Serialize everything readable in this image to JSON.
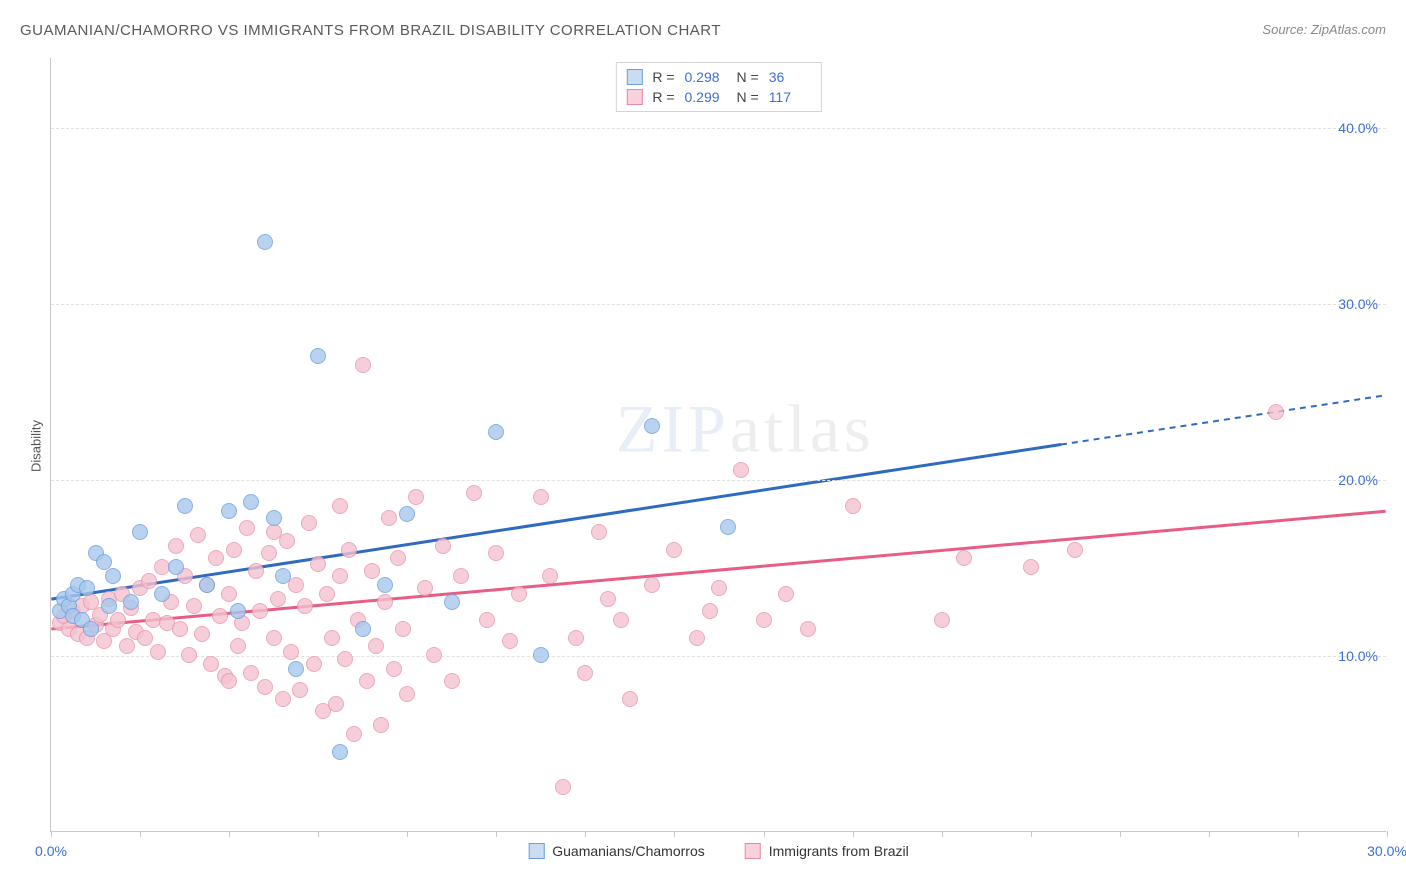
{
  "title": "GUAMANIAN/CHAMORRO VS IMMIGRANTS FROM BRAZIL DISABILITY CORRELATION CHART",
  "source_label": "Source:",
  "source_value": "ZipAtlas.com",
  "ylabel": "Disability",
  "watermark": {
    "part1": "ZIP",
    "part2": "atlas"
  },
  "chart": {
    "type": "scatter",
    "background_color": "#ffffff",
    "grid_color": "#e0e0e0",
    "axis_color": "#c8c8c8",
    "tick_label_color": "#3a6fd8",
    "tick_label_fontsize": 14,
    "xlim": [
      0,
      30
    ],
    "ylim": [
      0,
      44
    ],
    "x_ticks": [
      0,
      2,
      4,
      6,
      8,
      10,
      12,
      14,
      16,
      18,
      20,
      22,
      24,
      26,
      28,
      30
    ],
    "x_tick_labels": {
      "0": "0.0%",
      "30": "30.0%"
    },
    "y_gridlines": [
      10,
      20,
      30,
      40
    ],
    "y_tick_labels": {
      "10": "10.0%",
      "20": "20.0%",
      "30": "30.0%",
      "40": "40.0%"
    },
    "marker_radius": 8,
    "marker_stroke_width": 1.5,
    "marker_fill_opacity": 0.35,
    "series": [
      {
        "id": "guamanians",
        "label": "Guamanians/Chamorros",
        "color_stroke": "#6b9fde",
        "color_fill": "#a8c8ec",
        "swatch_border": "#6b9fde",
        "swatch_fill": "#cadcf2",
        "R": "0.298",
        "N": "36",
        "trend": {
          "color": "#2e6bc0",
          "width": 3,
          "x1": 0,
          "y1": 13.2,
          "x2": 22.7,
          "y2": 22.0,
          "dash_x2": 30,
          "dash_y2": 24.8
        },
        "points": [
          [
            0.2,
            12.5
          ],
          [
            0.3,
            13.2
          ],
          [
            0.4,
            12.8
          ],
          [
            0.5,
            13.5
          ],
          [
            0.5,
            12.2
          ],
          [
            0.6,
            14.0
          ],
          [
            0.7,
            12.0
          ],
          [
            0.8,
            13.8
          ],
          [
            0.9,
            11.5
          ],
          [
            1.0,
            15.8
          ],
          [
            1.2,
            15.3
          ],
          [
            1.3,
            12.8
          ],
          [
            1.4,
            14.5
          ],
          [
            1.8,
            13.0
          ],
          [
            2.0,
            17.0
          ],
          [
            2.5,
            13.5
          ],
          [
            3.0,
            18.5
          ],
          [
            3.5,
            14.0
          ],
          [
            4.0,
            18.2
          ],
          [
            4.2,
            12.5
          ],
          [
            4.5,
            18.7
          ],
          [
            4.8,
            33.5
          ],
          [
            5.0,
            17.8
          ],
          [
            5.5,
            9.2
          ],
          [
            6.0,
            27.0
          ],
          [
            6.5,
            4.5
          ],
          [
            7.0,
            11.5
          ],
          [
            7.5,
            14.0
          ],
          [
            8.0,
            18.0
          ],
          [
            9.0,
            13.0
          ],
          [
            10.0,
            22.7
          ],
          [
            11.0,
            10.0
          ],
          [
            13.5,
            23.0
          ],
          [
            15.2,
            17.3
          ],
          [
            5.2,
            14.5
          ],
          [
            2.8,
            15.0
          ]
        ]
      },
      {
        "id": "brazil",
        "label": "Immigrants from Brazil",
        "color_stroke": "#e895ac",
        "color_fill": "#f5c2d0",
        "swatch_border": "#e88aa3",
        "swatch_fill": "#f7d1dc",
        "R": "0.299",
        "N": "117",
        "trend": {
          "color": "#e85d85",
          "width": 3,
          "x1": 0,
          "y1": 11.5,
          "x2": 30,
          "y2": 18.2,
          "dash_x2": 30,
          "dash_y2": 18.2
        },
        "points": [
          [
            0.2,
            11.8
          ],
          [
            0.3,
            12.2
          ],
          [
            0.4,
            11.5
          ],
          [
            0.5,
            12.5
          ],
          [
            0.6,
            11.2
          ],
          [
            0.7,
            12.8
          ],
          [
            0.8,
            11.0
          ],
          [
            0.9,
            13.0
          ],
          [
            1.0,
            11.7
          ],
          [
            1.1,
            12.3
          ],
          [
            1.2,
            10.8
          ],
          [
            1.3,
            13.2
          ],
          [
            1.4,
            11.5
          ],
          [
            1.5,
            12.0
          ],
          [
            1.6,
            13.5
          ],
          [
            1.7,
            10.5
          ],
          [
            1.8,
            12.7
          ],
          [
            1.9,
            11.3
          ],
          [
            2.0,
            13.8
          ],
          [
            2.1,
            11.0
          ],
          [
            2.2,
            14.2
          ],
          [
            2.3,
            12.0
          ],
          [
            2.4,
            10.2
          ],
          [
            2.5,
            15.0
          ],
          [
            2.6,
            11.8
          ],
          [
            2.7,
            13.0
          ],
          [
            2.8,
            16.2
          ],
          [
            2.9,
            11.5
          ],
          [
            3.0,
            14.5
          ],
          [
            3.1,
            10.0
          ],
          [
            3.2,
            12.8
          ],
          [
            3.3,
            16.8
          ],
          [
            3.4,
            11.2
          ],
          [
            3.5,
            14.0
          ],
          [
            3.6,
            9.5
          ],
          [
            3.7,
            15.5
          ],
          [
            3.8,
            12.2
          ],
          [
            3.9,
            8.8
          ],
          [
            4.0,
            13.5
          ],
          [
            4.1,
            16.0
          ],
          [
            4.2,
            10.5
          ],
          [
            4.3,
            11.8
          ],
          [
            4.4,
            17.2
          ],
          [
            4.5,
            9.0
          ],
          [
            4.6,
            14.8
          ],
          [
            4.7,
            12.5
          ],
          [
            4.8,
            8.2
          ],
          [
            4.9,
            15.8
          ],
          [
            5.0,
            11.0
          ],
          [
            5.1,
            13.2
          ],
          [
            5.2,
            7.5
          ],
          [
            5.3,
            16.5
          ],
          [
            5.4,
            10.2
          ],
          [
            5.5,
            14.0
          ],
          [
            5.6,
            8.0
          ],
          [
            5.7,
            12.8
          ],
          [
            5.8,
            17.5
          ],
          [
            5.9,
            9.5
          ],
          [
            6.0,
            15.2
          ],
          [
            6.1,
            6.8
          ],
          [
            6.2,
            13.5
          ],
          [
            6.3,
            11.0
          ],
          [
            6.4,
            7.2
          ],
          [
            6.5,
            14.5
          ],
          [
            6.6,
            9.8
          ],
          [
            6.7,
            16.0
          ],
          [
            6.8,
            5.5
          ],
          [
            6.9,
            12.0
          ],
          [
            7.0,
            26.5
          ],
          [
            7.1,
            8.5
          ],
          [
            7.2,
            14.8
          ],
          [
            7.3,
            10.5
          ],
          [
            7.4,
            6.0
          ],
          [
            7.5,
            13.0
          ],
          [
            7.6,
            17.8
          ],
          [
            7.7,
            9.2
          ],
          [
            7.8,
            15.5
          ],
          [
            7.9,
            11.5
          ],
          [
            8.0,
            7.8
          ],
          [
            8.2,
            19.0
          ],
          [
            8.4,
            13.8
          ],
          [
            8.6,
            10.0
          ],
          [
            8.8,
            16.2
          ],
          [
            9.0,
            8.5
          ],
          [
            9.2,
            14.5
          ],
          [
            9.5,
            19.2
          ],
          [
            9.8,
            12.0
          ],
          [
            10.0,
            15.8
          ],
          [
            10.3,
            10.8
          ],
          [
            10.5,
            13.5
          ],
          [
            11.0,
            19.0
          ],
          [
            11.2,
            14.5
          ],
          [
            11.5,
            2.5
          ],
          [
            11.8,
            11.0
          ],
          [
            12.0,
            9.0
          ],
          [
            12.3,
            17.0
          ],
          [
            12.5,
            13.2
          ],
          [
            12.8,
            12.0
          ],
          [
            13.0,
            7.5
          ],
          [
            13.5,
            14.0
          ],
          [
            14.0,
            16.0
          ],
          [
            14.5,
            11.0
          ],
          [
            14.8,
            12.5
          ],
          [
            15.0,
            13.8
          ],
          [
            15.5,
            20.5
          ],
          [
            16.0,
            12.0
          ],
          [
            16.5,
            13.5
          ],
          [
            17.0,
            11.5
          ],
          [
            18.0,
            18.5
          ],
          [
            20.0,
            12.0
          ],
          [
            20.5,
            15.5
          ],
          [
            22.0,
            15.0
          ],
          [
            23.0,
            16.0
          ],
          [
            27.5,
            23.8
          ],
          [
            5.0,
            17.0
          ],
          [
            6.5,
            18.5
          ],
          [
            4.0,
            8.5
          ]
        ]
      }
    ]
  },
  "stat_labels": {
    "R": "R =",
    "N": "N ="
  }
}
